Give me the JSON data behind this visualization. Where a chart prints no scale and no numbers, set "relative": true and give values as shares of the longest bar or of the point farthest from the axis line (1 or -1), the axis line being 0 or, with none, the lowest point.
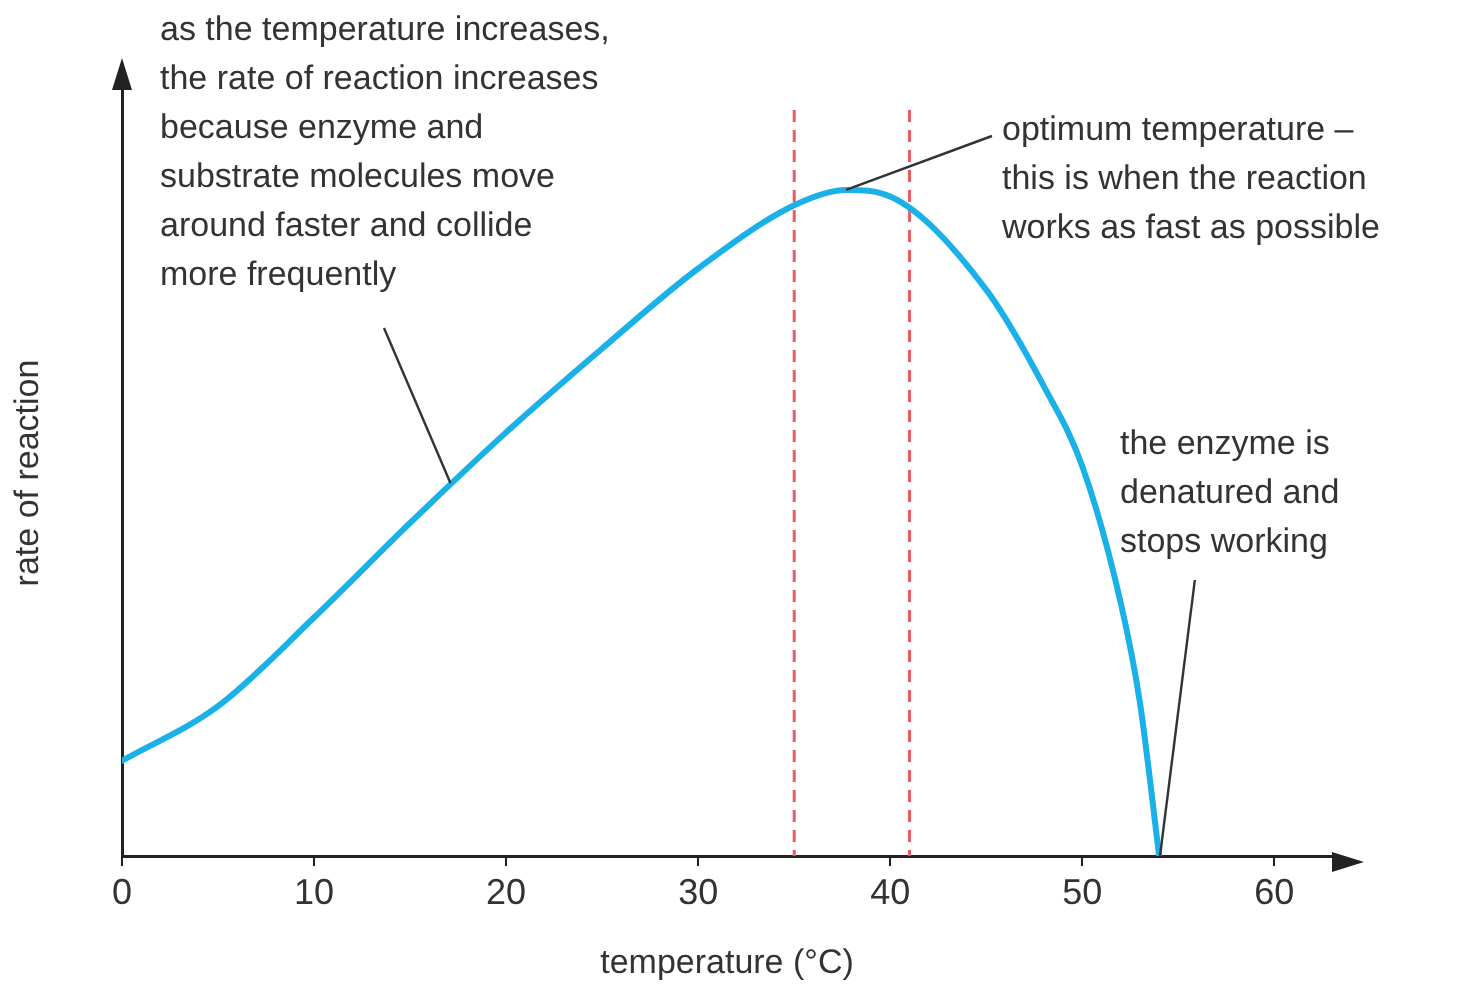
{
  "chart_data": {
    "type": "line",
    "relative": true,
    "xlabel": "temperature (°C)",
    "ylabel": "rate of reaction",
    "xlim": [
      0,
      63
    ],
    "xticks": [
      0,
      10,
      20,
      30,
      40,
      50,
      60
    ],
    "grid": false,
    "legend": false,
    "marker": "none",
    "line_style": "solid",
    "x": [
      0,
      5,
      10,
      15,
      20,
      25,
      30,
      35,
      37.7,
      40,
      45,
      48,
      50,
      52,
      53,
      54
    ],
    "series": [
      {
        "color": "#1ab0e8",
        "values": [
          0.143,
          0.225,
          0.358,
          0.5,
          0.636,
          0.762,
          0.882,
          0.977,
          1,
          0.99,
          0.85,
          0.705,
          0.585,
          0.38,
          0.23,
          0
        ]
      }
    ],
    "ref_lines": [
      {
        "axis": "x",
        "value": 35,
        "color": "#ec5a62",
        "line_style": "dashed"
      },
      {
        "axis": "x",
        "value": 41,
        "color": "#ec5a62",
        "line_style": "dashed"
      }
    ],
    "annotations": [
      {
        "text": "as the temperature increases,\nthe rate of reaction increases\nbecause enzyme and\nsubstrate molecules move\naround faster and collide\nmore frequently",
        "x": 17.1,
        "y": 0.56
      },
      {
        "text": "optimum temperature –\nthis is when the reaction\nworks as fast as possible",
        "x": 37.7,
        "y": 1
      },
      {
        "text": "the enzyme is\ndenatured and\nstops working",
        "x": 54,
        "y": 0
      }
    ]
  }
}
